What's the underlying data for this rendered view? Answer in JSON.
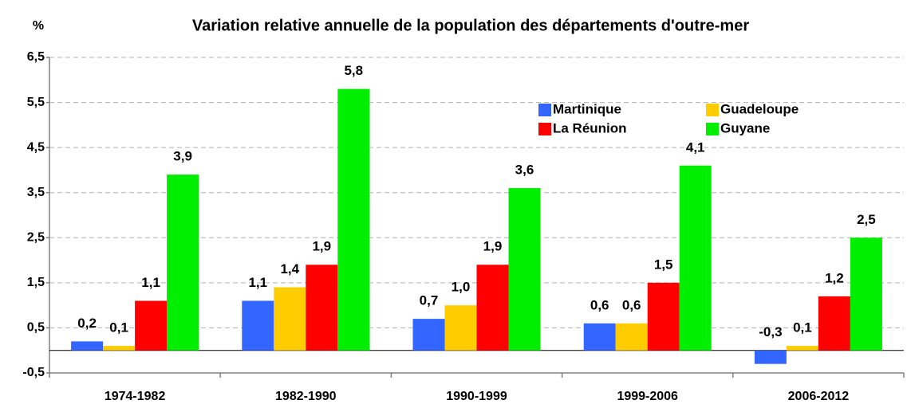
{
  "chart_data": {
    "type": "bar",
    "title": "Variation relative annuelle de la population des départements d'outre-mer",
    "y_label": "%",
    "categories": [
      "1974-1982",
      "1982-1990",
      "1990-1999",
      "1999-2006",
      "2006-2012"
    ],
    "series": [
      {
        "name": "Martinique",
        "color": "#3366ff",
        "values": [
          0.2,
          1.1,
          0.7,
          0.6,
          -0.3
        ],
        "value_labels": [
          "0,2",
          "1,1",
          "0,7",
          "0,6",
          "-0,3"
        ]
      },
      {
        "name": "Guadeloupe",
        "color": "#ffcc00",
        "values": [
          0.1,
          1.4,
          1.0,
          0.6,
          0.1
        ],
        "value_labels": [
          "0,1",
          "1,4",
          "1,0",
          "0,6",
          "0,1"
        ]
      },
      {
        "name": "La Réunion",
        "color": "#ff0000",
        "values": [
          1.1,
          1.9,
          1.9,
          1.5,
          1.2
        ],
        "value_labels": [
          "1,1",
          "1,9",
          "1,9",
          "1,5",
          "1,2"
        ]
      },
      {
        "name": "Guyane",
        "color": "#00ee00",
        "values": [
          3.9,
          5.8,
          3.6,
          4.1,
          2.5
        ],
        "value_labels": [
          "3,9",
          "5,8",
          "3,6",
          "4,1",
          "2,5"
        ]
      }
    ],
    "ylim": [
      -0.5,
      6.5
    ],
    "yticks": [
      {
        "value": -0.5,
        "label": "-0,5"
      },
      {
        "value": 0.5,
        "label": "0,5"
      },
      {
        "value": 1.5,
        "label": "1,5"
      },
      {
        "value": 2.5,
        "label": "2,5"
      },
      {
        "value": 3.5,
        "label": "3,5"
      },
      {
        "value": 4.5,
        "label": "4,5"
      },
      {
        "value": 5.5,
        "label": "5,5"
      },
      {
        "value": 6.5,
        "label": "6,5"
      }
    ],
    "grid": true,
    "legend": "upper right"
  }
}
